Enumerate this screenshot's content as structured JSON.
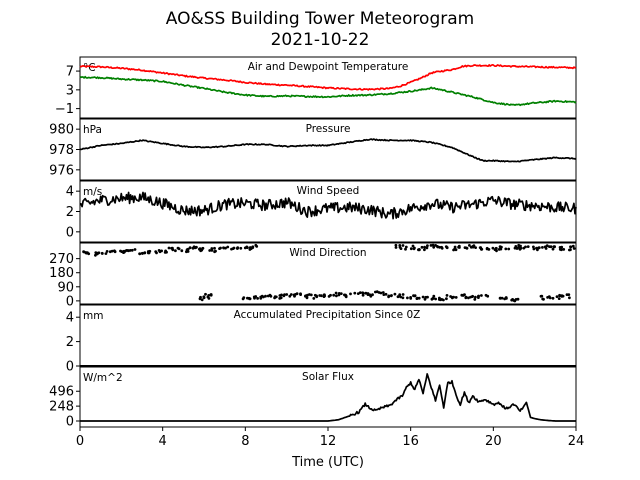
{
  "figure": {
    "title_line1": "AO&SS Building Tower Meteorogram",
    "title_line2": "2021-10-22",
    "xlabel": "Time (UTC)"
  },
  "chart_data": [
    {
      "type": "line",
      "title": "Air and Dewpoint Temperature",
      "unit": "°C",
      "ylim": [
        -3,
        10
      ],
      "yticks": [
        -1,
        3,
        7
      ],
      "xlim": [
        0,
        24
      ],
      "series": [
        {
          "color": "#ff0000",
          "x": [
            0,
            1,
            2,
            3,
            4,
            5,
            6,
            7,
            8,
            9,
            10,
            11,
            12,
            13,
            14,
            15,
            15.5,
            16,
            16.5,
            17,
            17.5,
            18,
            18.5,
            19,
            20,
            21,
            22,
            23,
            24
          ],
          "y": [
            8.0,
            7.9,
            7.6,
            7.2,
            6.6,
            6.0,
            5.5,
            5.1,
            4.6,
            4.2,
            4.0,
            3.7,
            3.4,
            3.2,
            3.1,
            3.3,
            3.8,
            4.6,
            5.5,
            6.6,
            7.0,
            7.3,
            8.0,
            8.2,
            8.2,
            8.0,
            7.9,
            7.8,
            7.7
          ]
        },
        {
          "color": "#008000",
          "x": [
            0,
            1,
            2,
            3,
            4,
            5,
            6,
            7,
            8,
            9,
            10,
            11,
            12,
            13,
            14,
            15,
            16,
            16.5,
            17,
            17.5,
            18,
            19,
            20,
            21,
            22,
            23,
            24
          ],
          "y": [
            5.7,
            5.6,
            5.3,
            5.1,
            4.8,
            4.0,
            3.3,
            2.5,
            1.9,
            1.6,
            1.7,
            1.6,
            1.5,
            1.8,
            1.9,
            2.2,
            2.7,
            3.0,
            3.4,
            3.0,
            2.5,
            1.5,
            0.3,
            -0.3,
            0.2,
            0.6,
            0.4
          ]
        }
      ]
    },
    {
      "type": "line",
      "title": "Pressure",
      "unit": "hPa",
      "ylim": [
        975.0,
        981.0
      ],
      "yticks": [
        976,
        978,
        980
      ],
      "xlim": [
        0,
        24
      ],
      "series": [
        {
          "color": "#000000",
          "x": [
            0,
            1,
            2,
            3,
            4,
            5,
            6,
            7,
            8,
            9,
            10,
            11,
            12,
            13,
            14,
            15,
            16,
            17,
            18,
            19,
            19.5,
            20,
            21,
            22,
            23,
            24
          ],
          "y": [
            978.0,
            978.4,
            978.6,
            978.9,
            978.6,
            978.3,
            978.2,
            978.3,
            978.5,
            978.5,
            978.3,
            978.4,
            978.4,
            978.7,
            979.0,
            978.9,
            978.9,
            978.7,
            978.2,
            977.3,
            976.9,
            976.9,
            976.8,
            977.0,
            977.2,
            977.1
          ]
        }
      ]
    },
    {
      "type": "line",
      "title": "Wind Speed",
      "unit": "m/s",
      "ylim": [
        -1,
        5
      ],
      "yticks": [
        0,
        2,
        4
      ],
      "xlim": [
        0,
        24
      ],
      "series": [
        {
          "color": "#000000",
          "x": [
            0,
            1,
            2,
            3,
            4,
            5,
            6,
            7,
            8,
            9,
            10,
            11,
            12,
            13,
            14,
            15,
            16,
            17,
            18,
            19,
            20,
            21,
            22,
            23,
            24
          ],
          "y": [
            2.6,
            3.1,
            3.3,
            3.4,
            2.8,
            2.1,
            2.1,
            2.7,
            2.8,
            2.6,
            2.9,
            2.0,
            2.3,
            2.4,
            2.2,
            1.7,
            2.3,
            2.8,
            2.4,
            2.7,
            3.1,
            2.7,
            2.6,
            2.4,
            2.3
          ]
        }
      ]
    },
    {
      "type": "scatter",
      "title": "Wind Direction",
      "unit": "",
      "ylim": [
        -20,
        370
      ],
      "yticks": [
        0,
        90,
        180,
        270
      ],
      "xlim": [
        0,
        24
      ],
      "series": [
        {
          "color": "#000000",
          "x": [
            0,
            0.5,
            1,
            1.5,
            2,
            2.5,
            3,
            3.5,
            4,
            4.5,
            5,
            5.5,
            6,
            6.5,
            7,
            7.5,
            8,
            8.5,
            15.5,
            16,
            16.5,
            17,
            17.5,
            18,
            18.5,
            19,
            19.5,
            20,
            20.5,
            21,
            21.5,
            22,
            22.5,
            23,
            23.5,
            24
          ],
          "y": [
            310,
            300,
            305,
            310,
            315,
            320,
            310,
            315,
            320,
            330,
            325,
            335,
            330,
            325,
            335,
            330,
            335,
            345,
            345,
            340,
            335,
            345,
            340,
            335,
            340,
            345,
            340,
            330,
            340,
            345,
            340,
            335,
            345,
            340,
            335,
            340
          ]
        },
        {
          "color": "#000000",
          "x": [
            6,
            6.2,
            8,
            8.5,
            9,
            9.5,
            10,
            10.5,
            11,
            11.5,
            12,
            12.5,
            13,
            13.5,
            14,
            14.5,
            15,
            15.5,
            16,
            16.5,
            17,
            17.5,
            18,
            18.5,
            19,
            19.5,
            20.5,
            21,
            22.5,
            23,
            23.5,
            24
          ],
          "y": [
            15,
            35,
            20,
            25,
            30,
            25,
            30,
            35,
            30,
            25,
            30,
            40,
            35,
            45,
            40,
            50,
            35,
            30,
            25,
            15,
            20,
            10,
            25,
            30,
            20,
            25,
            20,
            10,
            20,
            25,
            30,
            20
          ]
        }
      ]
    },
    {
      "type": "line",
      "title": "Accumulated Precipitation Since 0Z",
      "unit": "mm",
      "ylim": [
        0,
        5
      ],
      "yticks": [
        0,
        2,
        4
      ],
      "xlim": [
        0,
        24
      ],
      "series": [
        {
          "color": "#000000",
          "x": [
            0,
            24
          ],
          "y": [
            0,
            0
          ]
        }
      ]
    },
    {
      "type": "line",
      "title": "Solar Flux",
      "unit": "W/m^2",
      "ylim": [
        -100,
        900
      ],
      "yticks": [
        0,
        248,
        496
      ],
      "xlim": [
        0,
        24
      ],
      "series": [
        {
          "color": "#000000",
          "x": [
            0,
            12,
            12.5,
            13,
            13.5,
            13.8,
            14,
            14.3,
            14.6,
            15,
            15.3,
            15.6,
            15.8,
            16,
            16.2,
            16.4,
            16.6,
            16.8,
            17,
            17.2,
            17.4,
            17.6,
            17.8,
            18,
            18.2,
            18.4,
            18.6,
            18.8,
            19,
            19.3,
            19.6,
            20,
            20.3,
            20.6,
            21,
            21.3,
            21.6,
            21.8,
            22,
            22.3,
            22.6,
            23,
            24
          ],
          "y": [
            0,
            0,
            20,
            80,
            150,
            280,
            220,
            170,
            220,
            260,
            350,
            420,
            560,
            640,
            520,
            700,
            450,
            780,
            560,
            340,
            600,
            230,
            640,
            650,
            440,
            270,
            480,
            300,
            420,
            320,
            360,
            280,
            300,
            200,
            280,
            160,
            310,
            60,
            40,
            20,
            10,
            0,
            0
          ]
        }
      ]
    }
  ]
}
